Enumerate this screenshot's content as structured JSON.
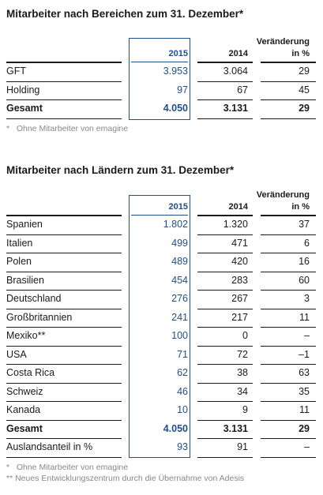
{
  "table1": {
    "title": "Mitarbeiter nach Bereichen zum 31. Dezember*",
    "headers": {
      "y2015": "2015",
      "y2014": "2014",
      "change_line1": "Veränderung",
      "change_line2": "in %"
    },
    "rows": [
      {
        "label": "GFT",
        "v2015": "3.953",
        "v2014": "3.064",
        "change": "29"
      },
      {
        "label": "Holding",
        "v2015": "97",
        "v2014": "67",
        "change": "45"
      }
    ],
    "total": {
      "label": "Gesamt",
      "v2015": "4.050",
      "v2014": "3.131",
      "change": "29"
    },
    "footnotes": [
      "*   Ohne Mitarbeiter von emagine"
    ]
  },
  "table2": {
    "title": "Mitarbeiter nach Ländern zum 31. Dezember*",
    "headers": {
      "y2015": "2015",
      "y2014": "2014",
      "change_line1": "Veränderung",
      "change_line2": "in %"
    },
    "rows": [
      {
        "label": "Spanien",
        "v2015": "1.802",
        "v2014": "1.320",
        "change": "37"
      },
      {
        "label": "Italien",
        "v2015": "499",
        "v2014": "471",
        "change": "6"
      },
      {
        "label": "Polen",
        "v2015": "489",
        "v2014": "420",
        "change": "16"
      },
      {
        "label": "Brasilien",
        "v2015": "454",
        "v2014": "283",
        "change": "60"
      },
      {
        "label": "Deutschland",
        "v2015": "276",
        "v2014": "267",
        "change": "3"
      },
      {
        "label": "Großbritannien",
        "v2015": "241",
        "v2014": "217",
        "change": "11"
      },
      {
        "label": "Mexiko**",
        "v2015": "100",
        "v2014": "0",
        "change": "–"
      },
      {
        "label": "USA",
        "v2015": "71",
        "v2014": "72",
        "change": "–1"
      },
      {
        "label": "Costa Rica",
        "v2015": "62",
        "v2014": "38",
        "change": "63"
      },
      {
        "label": "Schweiz",
        "v2015": "46",
        "v2014": "34",
        "change": "35"
      },
      {
        "label": "Kanada",
        "v2015": "10",
        "v2014": "9",
        "change": "11"
      }
    ],
    "total": {
      "label": "Gesamt",
      "v2015": "4.050",
      "v2014": "3.131",
      "change": "29"
    },
    "extra": {
      "label": "Auslandsanteil in %",
      "v2015": "93",
      "v2014": "91",
      "change": "–"
    },
    "footnotes": [
      "*   Ohne Mitarbeiter von emagine",
      "** Neues Entwicklungszentrum durch die Übernahme von Adesis"
    ]
  }
}
